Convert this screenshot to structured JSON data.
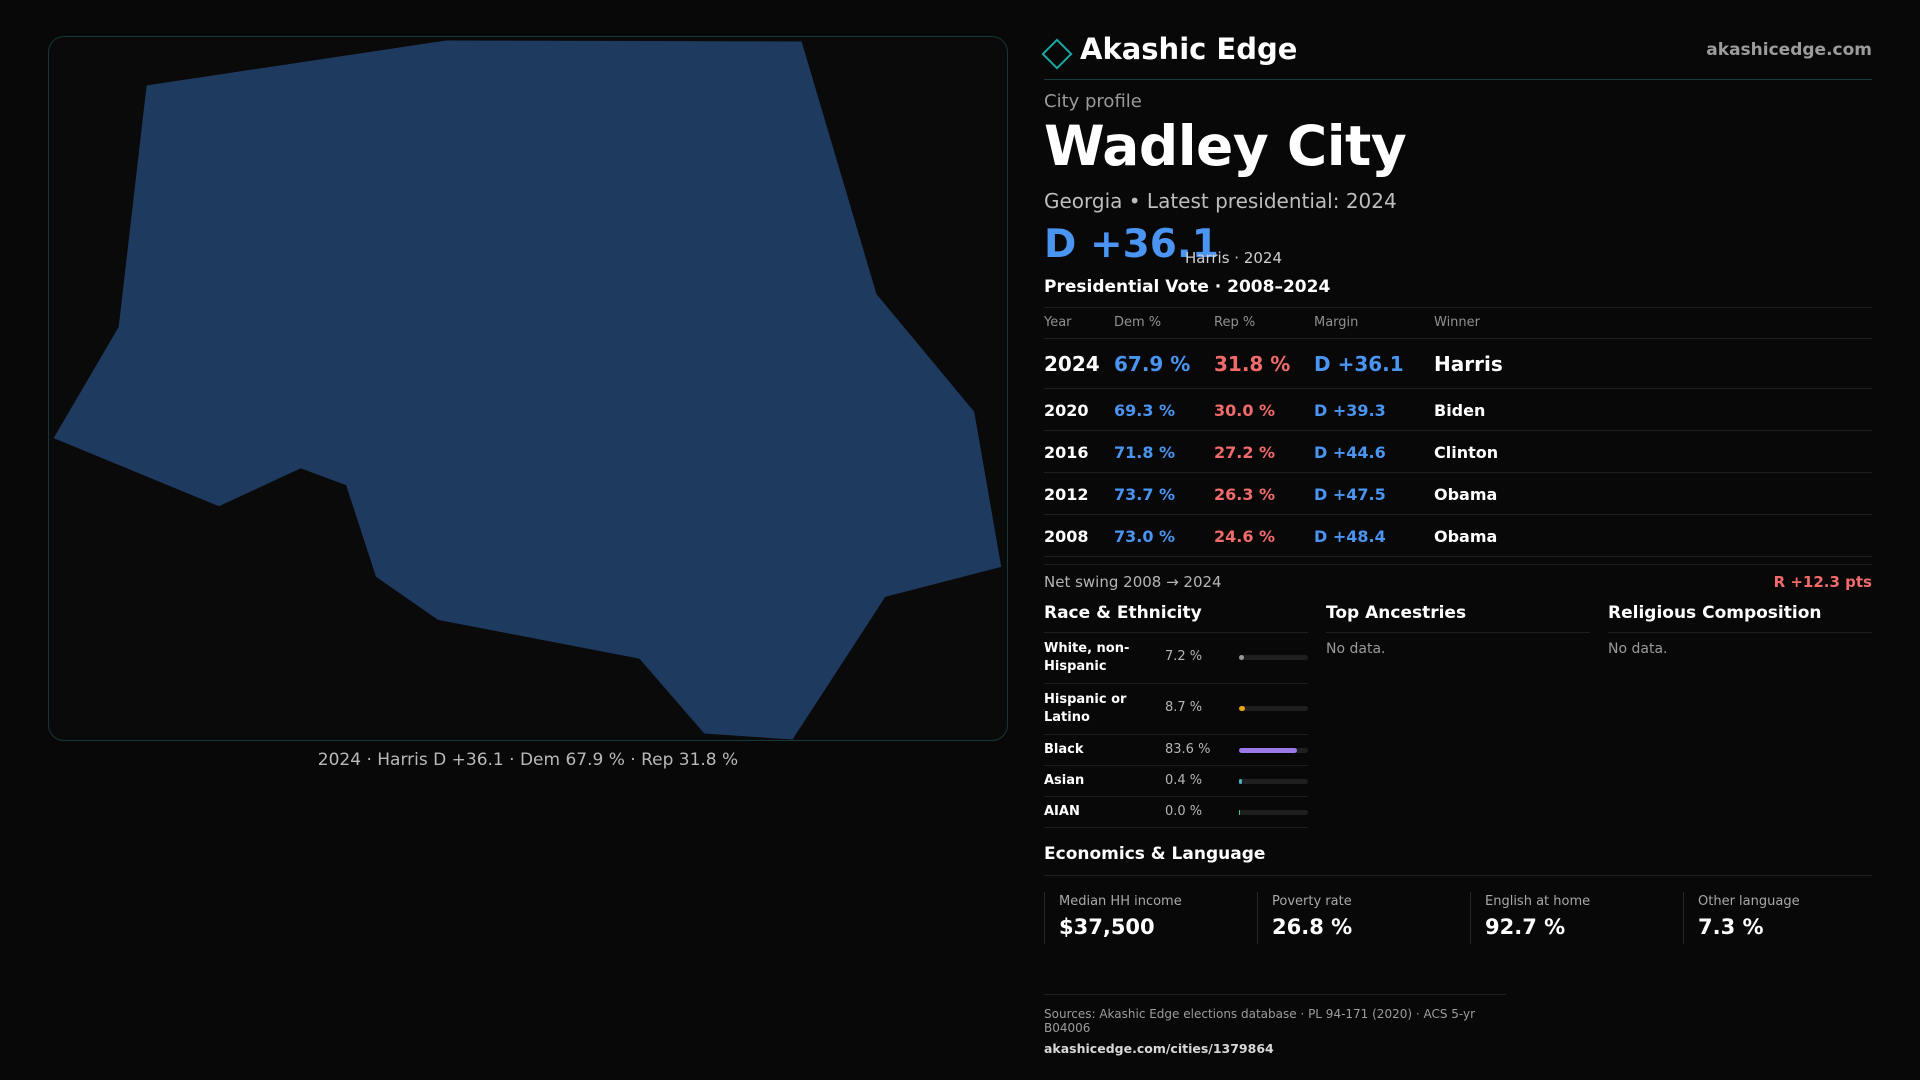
{
  "map": {
    "caption": "2024 · Harris D +36.1 · Dem 67.9 % · Rep 31.8 %",
    "fill_color": "#1f3a5f",
    "border_color": "#16383a"
  },
  "brand": {
    "name": "Akashic Edge",
    "url": "akashicedge.com",
    "logo_icon": "diamond-icon",
    "accent_color": "#17a9a3"
  },
  "profile": {
    "kicker": "City profile",
    "title": "Wadley City",
    "subtitle": "Georgia • Latest presidential: 2024",
    "headline_margin": "D +36.1",
    "headline_winner": "Harris · 2024"
  },
  "vote": {
    "title": "Presidential Vote · 2008–2024",
    "headers": {
      "year": "Year",
      "dem": "Dem %",
      "rep": "Rep %",
      "margin": "Margin",
      "winner": "Winner"
    },
    "rows": [
      {
        "year": "2024",
        "dem": "67.9 %",
        "rep": "31.8 %",
        "margin": "D +36.1",
        "winner": "Harris"
      },
      {
        "year": "2020",
        "dem": "69.3 %",
        "rep": "30.0 %",
        "margin": "D +39.3",
        "winner": "Biden"
      },
      {
        "year": "2016",
        "dem": "71.8 %",
        "rep": "27.2 %",
        "margin": "D +44.6",
        "winner": "Clinton"
      },
      {
        "year": "2012",
        "dem": "73.7 %",
        "rep": "26.3 %",
        "margin": "D +47.5",
        "winner": "Obama"
      },
      {
        "year": "2008",
        "dem": "73.0 %",
        "rep": "24.6 %",
        "margin": "D +48.4",
        "winner": "Obama"
      }
    ],
    "dem_color": "#4a94f2",
    "rep_color": "#f26b6b"
  },
  "swing": {
    "label": "Net swing 2008 → 2024",
    "value": "R +12.3 pts"
  },
  "race": {
    "title": "Race & Ethnicity",
    "items": [
      {
        "label": "White, non-Hispanic",
        "pct": "7.2 %",
        "value": 7.2,
        "color": "#9a9a9a"
      },
      {
        "label": "Hispanic or Latino",
        "pct": "8.7 %",
        "value": 8.7,
        "color": "#e8a317"
      },
      {
        "label": "Black",
        "pct": "83.6 %",
        "value": 83.6,
        "color": "#9b7ae8"
      },
      {
        "label": "Asian",
        "pct": "0.4 %",
        "value": 0.4,
        "color": "#4ab0c8"
      },
      {
        "label": "AIAN",
        "pct": "0.0 %",
        "value": 0.0,
        "color": "#4ac88a"
      }
    ]
  },
  "ancestries": {
    "title": "Top Ancestries",
    "empty": "No data."
  },
  "religion": {
    "title": "Religious Composition",
    "empty": "No data."
  },
  "economics": {
    "title": "Economics & Language",
    "cards": [
      {
        "label": "Median HH income",
        "value": "$37,500"
      },
      {
        "label": "Poverty rate",
        "value": "26.8 %"
      },
      {
        "label": "English at home",
        "value": "92.7 %"
      },
      {
        "label": "Other language",
        "value": "7.3 %"
      }
    ]
  },
  "sources": {
    "text": "Sources: Akashic Edge elections database · PL 94-171 (2020) · ACS 5-yr B04006",
    "url": "akashicedge.com/cities/1379864"
  }
}
